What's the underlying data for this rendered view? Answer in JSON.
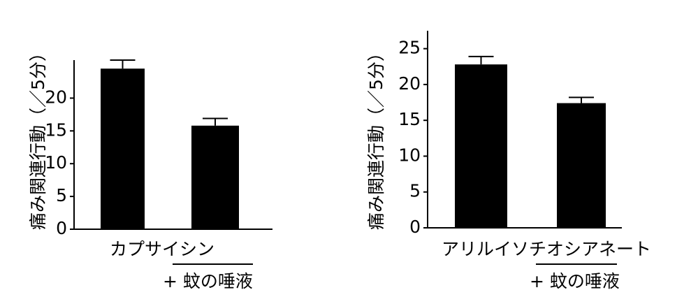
{
  "chart_data": [
    {
      "type": "bar",
      "ylabel": "痛み関連行動（／5分）",
      "categories": [
        "カプサイシン",
        "+ 蚊の唾液"
      ],
      "category_label": "カプサイシン",
      "group_label": "+ 蚊の唾液",
      "values": [
        24.5,
        15.8
      ],
      "errors": [
        1.3,
        1.1
      ],
      "ylim": [
        0,
        25.8
      ],
      "yticks": [
        0,
        5,
        10,
        15,
        20
      ],
      "grid": false,
      "bar_color": "#000000"
    },
    {
      "type": "bar",
      "ylabel": "痛み関連行動（／5分）",
      "categories": [
        "アリルイソチオシアネート",
        "+ 蚊の唾液"
      ],
      "category_label": "アリルイソチオシアネート",
      "group_label": "+ 蚊の唾液",
      "values": [
        22.8,
        17.4
      ],
      "errors": [
        1.1,
        0.8
      ],
      "ylim": [
        0,
        27.5
      ],
      "yticks": [
        0,
        5,
        10,
        15,
        20,
        25
      ],
      "grid": false,
      "bar_color": "#000000"
    }
  ]
}
